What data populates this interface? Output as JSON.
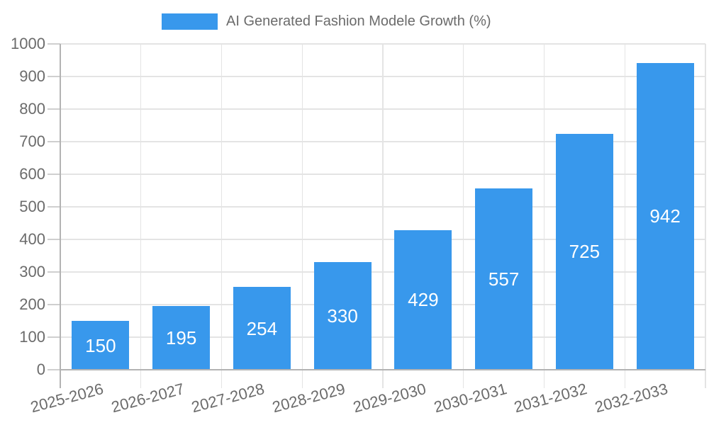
{
  "legend": {
    "label": "AI Generated Fashion Modele Growth (%)",
    "swatch_color": "#3898ec"
  },
  "chart_data": {
    "type": "bar",
    "title": "AI Generated Fashion Modele Growth (%)",
    "series_name": "AI Generated Fashion Modele Growth (%)",
    "categories": [
      "2025-2026",
      "2026-2027",
      "2027-2028",
      "2028-2029",
      "2029-2030",
      "2030-2031",
      "2031-2032",
      "2032-2033"
    ],
    "values": [
      150,
      195,
      254,
      330,
      429,
      557,
      725,
      942
    ],
    "xlabel": "",
    "ylabel": "",
    "ylim": [
      0,
      1000
    ],
    "ytick_step": 100,
    "yticks": [
      0,
      100,
      200,
      300,
      400,
      500,
      600,
      700,
      800,
      900,
      1000
    ],
    "grid": true,
    "legend_position": "top",
    "x_label_rotation_deg": -15,
    "bar_color": "#3898ec",
    "value_label_color": "#ffffff",
    "axis_text_color": "#6b6b6b",
    "grid_color": "#e4e4e4",
    "tick_color": "#cfcfcf",
    "axis_line_color": "#b3b3b3",
    "background_color": "#ffffff"
  }
}
